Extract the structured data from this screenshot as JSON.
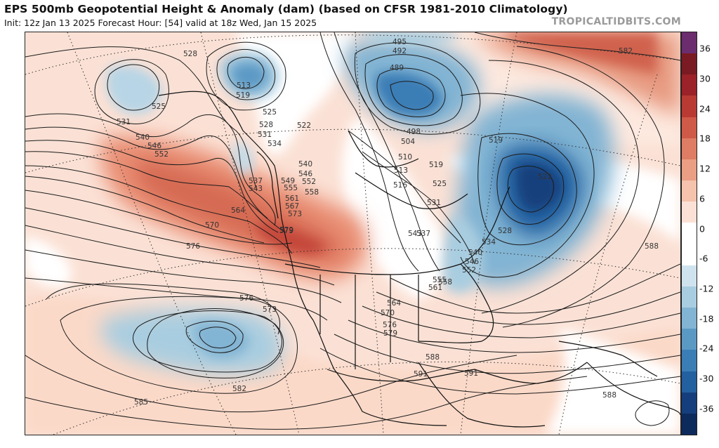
{
  "header": {
    "title": "EPS 500mb Geopotential Height & Anomaly (dam) (based on CFSR 1981-2010 Climatology)",
    "subtitle": "Init: 12z Jan 13 2025   Forecast Hour: [54]   valid at 18z Wed, Jan 15 2025",
    "brand": "TROPICALTIDBITS.COM"
  },
  "colorbar": {
    "labels": [
      "36",
      "30",
      "24",
      "18",
      "12",
      "6",
      "0",
      "-6",
      "-12",
      "-18",
      "-24",
      "-30",
      "-36"
    ],
    "colors": [
      "#6b2d6e",
      "#7a1a22",
      "#9a2228",
      "#b83a33",
      "#cf5a47",
      "#de7d64",
      "#ea9e83",
      "#f4c2ad",
      "#fbe1d5",
      "#ffffff",
      "#ffffff",
      "#cfe3ee",
      "#a9cde0",
      "#82b4d3",
      "#5b99c5",
      "#3b7db5",
      "#2260a0",
      "#153f7c",
      "#0d2a5c"
    ]
  },
  "contour_labels": [
    {
      "t": "528"
    },
    {
      "t": "525"
    },
    {
      "t": "531"
    },
    {
      "t": "540"
    },
    {
      "t": "546"
    },
    {
      "t": "552"
    },
    {
      "t": "513"
    },
    {
      "t": "519"
    },
    {
      "t": "525"
    },
    {
      "t": "528"
    },
    {
      "t": "531"
    },
    {
      "t": "534"
    },
    {
      "t": "537"
    },
    {
      "t": "543"
    },
    {
      "t": "549"
    },
    {
      "t": "555"
    },
    {
      "t": "561"
    },
    {
      "t": "567"
    },
    {
      "t": "573"
    },
    {
      "t": "579"
    },
    {
      "t": "564"
    },
    {
      "t": "570"
    },
    {
      "t": "576"
    },
    {
      "t": "522"
    },
    {
      "t": "540"
    },
    {
      "t": "546"
    },
    {
      "t": "552"
    },
    {
      "t": "558"
    },
    {
      "t": "495"
    },
    {
      "t": "492"
    },
    {
      "t": "489"
    },
    {
      "t": "498"
    },
    {
      "t": "504"
    },
    {
      "t": "510"
    },
    {
      "t": "513"
    },
    {
      "t": "516"
    },
    {
      "t": "519"
    },
    {
      "t": "525"
    },
    {
      "t": "531"
    },
    {
      "t": "537"
    },
    {
      "t": "543"
    },
    {
      "t": "519"
    },
    {
      "t": "522"
    },
    {
      "t": "528"
    },
    {
      "t": "534"
    },
    {
      "t": "540"
    },
    {
      "t": "546"
    },
    {
      "t": "552"
    },
    {
      "t": "555"
    },
    {
      "t": "558"
    },
    {
      "t": "561"
    },
    {
      "t": "564"
    },
    {
      "t": "570"
    },
    {
      "t": "576"
    },
    {
      "t": "579"
    },
    {
      "t": "579"
    },
    {
      "t": "576"
    },
    {
      "t": "573"
    },
    {
      "t": "582"
    },
    {
      "t": "585"
    },
    {
      "t": "588"
    },
    {
      "t": "591"
    },
    {
      "t": "588"
    },
    {
      "t": "591"
    },
    {
      "t": "588"
    },
    {
      "t": "582"
    }
  ]
}
